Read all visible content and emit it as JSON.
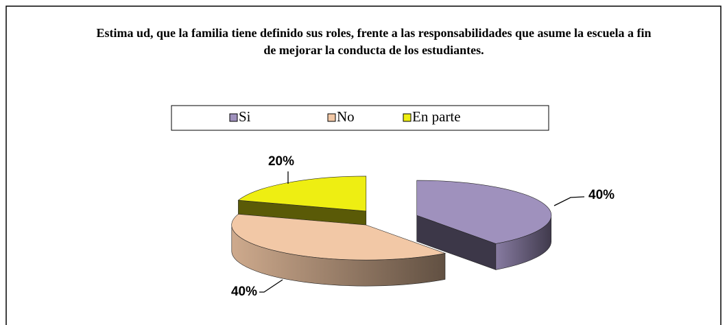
{
  "chart_data": {
    "type": "pie",
    "title": "Estima ud, que la familia tiene definido sus roles, frente a las responsabilidades que asume la escuela a fin de mejorar la conducta de los estudiantes.",
    "categories": [
      "Si",
      "No",
      "En parte"
    ],
    "values": [
      40,
      40,
      20
    ],
    "value_labels": [
      "40%",
      "40%",
      "20%"
    ],
    "colors": [
      "#9f91bd",
      "#f2c8a6",
      "#eeee12"
    ],
    "legend": "top"
  }
}
